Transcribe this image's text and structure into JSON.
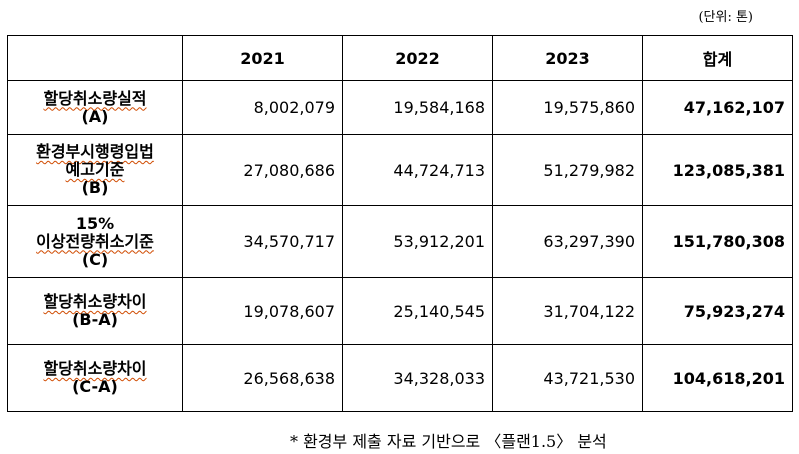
{
  "unit_note": "(단위: 톤)",
  "columns": [
    "",
    "2021",
    "2022",
    "2023",
    "합계"
  ],
  "rows": [
    {
      "label_line1": "할당취소량실적",
      "label_line2": "(A)",
      "label_line3": "",
      "v2021": "8,002,079",
      "v2022": "19,584,168",
      "v2023": "19,575,860",
      "total": "47,162,107"
    },
    {
      "label_line1": "환경부시행령입법",
      "label_line2": "예고기준",
      "label_line3": "(B)",
      "v2021": "27,080,686",
      "v2022": "44,724,713",
      "v2023": "51,279,982",
      "total": "123,085,381"
    },
    {
      "label_line1": "15%",
      "label_line2": "이상전량취소기준",
      "label_line3": "(C)",
      "v2021": "34,570,717",
      "v2022": "53,912,201",
      "v2023": "63,297,390",
      "total": "151,780,308"
    },
    {
      "label_line1": "할당취소량차이",
      "label_line2": "(B-A)",
      "label_line3": "",
      "v2021": "19,078,607",
      "v2022": "25,140,545",
      "v2023": "31,704,122",
      "total": "75,923,274"
    },
    {
      "label_line1": "할당취소량차이",
      "label_line2": "(C-A)",
      "label_line3": "",
      "v2021": "26,568,638",
      "v2022": "34,328,033",
      "v2023": "43,721,530",
      "total": "104,618,201"
    }
  ],
  "source_note": "* 환경부 제출 자료 기반으로 〈플랜1.5〉 분석"
}
